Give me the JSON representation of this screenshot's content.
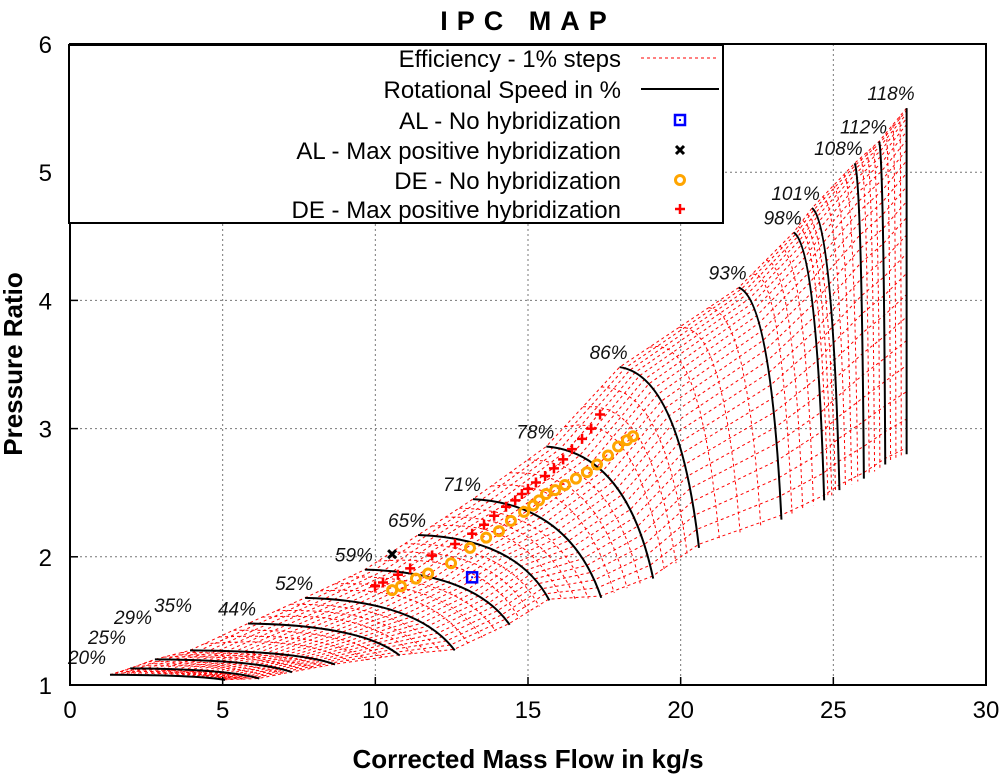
{
  "chart_data": {
    "type": "line",
    "title": "IPC MAP",
    "xlabel": "Corrected Mass Flow in kg/s",
    "ylabel": "Pressure Ratio",
    "xlim": [
      0,
      30
    ],
    "ylim": [
      1,
      6
    ],
    "xticks": [
      0,
      5,
      10,
      15,
      20,
      25,
      30
    ],
    "yticks": [
      1,
      2,
      3,
      4,
      5,
      6
    ],
    "grid": true,
    "legend_placement": "top-left",
    "legend": [
      {
        "label": "Efficiency - 1% steps",
        "style": "dashed-line",
        "color": "#ff0000"
      },
      {
        "label": "Rotational Speed in %",
        "style": "solid-line",
        "color": "#000000"
      },
      {
        "label": "AL - No hybridization",
        "style": "square-marker",
        "color": "#0000ff"
      },
      {
        "label": "AL - Max positive hybridization",
        "style": "x-marker",
        "color": "#000000"
      },
      {
        "label": "DE - No hybridization",
        "style": "circle-marker",
        "color": "#ffa500"
      },
      {
        "label": "DE - Max positive hybridization",
        "style": "plus-marker",
        "color": "#ff0000"
      }
    ],
    "speed_lines": [
      {
        "label": "20%",
        "start": [
          1.31,
          1.08
        ],
        "end": [
          5.08,
          1.04
        ]
      },
      {
        "label": "25%",
        "start": [
          1.97,
          1.13
        ],
        "end": [
          6.2,
          1.05
        ]
      },
      {
        "label": "29%",
        "start": [
          2.78,
          1.2
        ],
        "end": [
          7.27,
          1.1
        ]
      },
      {
        "label": "35%",
        "start": [
          3.93,
          1.27
        ],
        "end": [
          8.68,
          1.16
        ]
      },
      {
        "label": "44%",
        "start": [
          5.83,
          1.48
        ],
        "end": [
          10.8,
          1.23
        ]
      },
      {
        "label": "52%",
        "start": [
          7.7,
          1.68
        ],
        "end": [
          12.6,
          1.27
        ]
      },
      {
        "label": "59%",
        "start": [
          9.66,
          1.9
        ],
        "end": [
          14.4,
          1.47
        ]
      },
      {
        "label": "65%",
        "start": [
          11.4,
          2.17
        ],
        "end": [
          15.7,
          1.66
        ]
      },
      {
        "label": "71%",
        "start": [
          13.2,
          2.45
        ],
        "end": [
          17.4,
          1.68
        ]
      },
      {
        "label": "78%",
        "start": [
          15.6,
          2.86
        ],
        "end": [
          19.1,
          1.83
        ]
      },
      {
        "label": "86%",
        "start": [
          18.0,
          3.48
        ],
        "end": [
          20.6,
          2.07
        ]
      },
      {
        "label": "93%",
        "start": [
          21.9,
          4.1
        ],
        "end": [
          23.3,
          2.29
        ]
      },
      {
        "label": "98%",
        "start": [
          23.7,
          4.53
        ],
        "end": [
          24.7,
          2.44
        ]
      },
      {
        "label": "101%",
        "start": [
          24.3,
          4.72
        ],
        "end": [
          25.2,
          2.52
        ]
      },
      {
        "label": "108%",
        "start": [
          25.7,
          5.07
        ],
        "end": [
          26.0,
          2.61
        ]
      },
      {
        "label": "112%",
        "start": [
          26.5,
          5.24
        ],
        "end": [
          26.7,
          2.72
        ]
      },
      {
        "label": "118%",
        "start": [
          27.4,
          5.5
        ],
        "end": [
          27.4,
          2.8
        ]
      }
    ],
    "series": [
      {
        "name": "AL - No hybridization",
        "marker": "square",
        "color": "#0000ff",
        "points": [
          [
            13.17,
            1.84
          ]
        ]
      },
      {
        "name": "AL - Max positive hybridization",
        "marker": "x",
        "color": "#000000",
        "points": [
          [
            10.55,
            2.02
          ]
        ]
      },
      {
        "name": "DE - No hybridization",
        "marker": "circle",
        "color": "#ffa500",
        "points": [
          [
            10.55,
            1.74
          ],
          [
            10.84,
            1.77
          ],
          [
            11.33,
            1.83
          ],
          [
            11.73,
            1.87
          ],
          [
            12.48,
            1.95
          ],
          [
            13.1,
            2.07
          ],
          [
            13.63,
            2.15
          ],
          [
            14.05,
            2.2
          ],
          [
            14.44,
            2.28
          ],
          [
            14.87,
            2.35
          ],
          [
            15.17,
            2.4
          ],
          [
            15.36,
            2.44
          ],
          [
            15.59,
            2.49
          ],
          [
            15.89,
            2.52
          ],
          [
            16.21,
            2.56
          ],
          [
            16.57,
            2.61
          ],
          [
            16.93,
            2.66
          ],
          [
            17.26,
            2.72
          ],
          [
            17.62,
            2.79
          ],
          [
            17.95,
            2.86
          ],
          [
            18.24,
            2.91
          ],
          [
            18.44,
            2.94
          ]
        ]
      },
      {
        "name": "DE - Max positive hybridization",
        "marker": "plus",
        "color": "#ff0000",
        "points": [
          [
            9.99,
            1.77
          ],
          [
            10.25,
            1.8
          ],
          [
            10.74,
            1.86
          ],
          [
            11.14,
            1.91
          ],
          [
            11.86,
            2.01
          ],
          [
            12.61,
            2.1
          ],
          [
            13.17,
            2.18
          ],
          [
            13.56,
            2.25
          ],
          [
            13.89,
            2.32
          ],
          [
            14.28,
            2.39
          ],
          [
            14.58,
            2.44
          ],
          [
            14.8,
            2.49
          ],
          [
            15.0,
            2.53
          ],
          [
            15.26,
            2.58
          ],
          [
            15.56,
            2.63
          ],
          [
            15.85,
            2.69
          ],
          [
            16.15,
            2.76
          ],
          [
            16.44,
            2.84
          ],
          [
            16.77,
            2.92
          ],
          [
            17.07,
            3.0
          ],
          [
            17.36,
            3.11
          ]
        ]
      }
    ]
  }
}
